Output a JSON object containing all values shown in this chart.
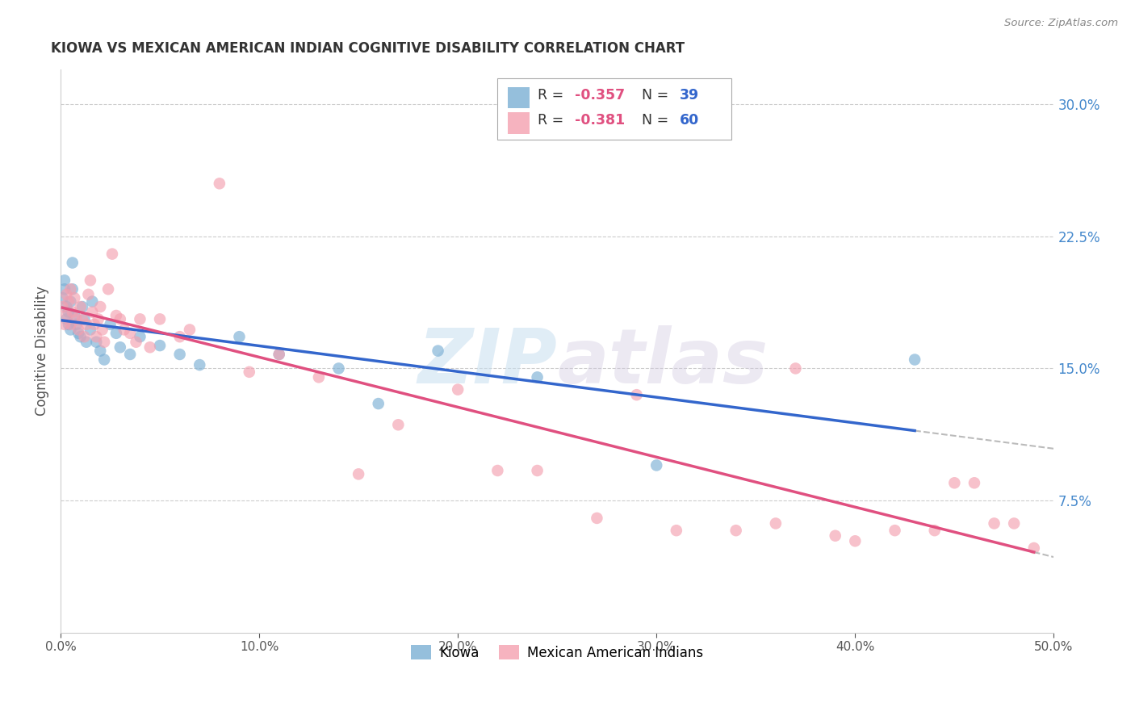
{
  "title": "KIOWA VS MEXICAN AMERICAN INDIAN COGNITIVE DISABILITY CORRELATION CHART",
  "source": "Source: ZipAtlas.com",
  "ylabel": "Cognitive Disability",
  "watermark_zip": "ZIP",
  "watermark_atlas": "atlas",
  "xlim": [
    0.0,
    0.5
  ],
  "ylim": [
    0.0,
    0.32
  ],
  "xticks": [
    0.0,
    0.1,
    0.2,
    0.3,
    0.4,
    0.5
  ],
  "yticks_right": [
    0.075,
    0.15,
    0.225,
    0.3
  ],
  "ytick_labels_right": [
    "7.5%",
    "15.0%",
    "22.5%",
    "30.0%"
  ],
  "xtick_labels": [
    "0.0%",
    "10.0%",
    "20.0%",
    "30.0%",
    "40.0%",
    "50.0%"
  ],
  "grid_color": "#cccccc",
  "background_color": "#ffffff",
  "kiowa_color": "#7bafd4",
  "mexican_color": "#f4a0b0",
  "kiowa_line_color": "#3366cc",
  "mexican_line_color": "#e05080",
  "dash_color": "#bbbbbb",
  "kiowa_label": "Kiowa",
  "mexican_label": "Mexican American Indians",
  "legend_R_color": "#e05080",
  "legend_N_color": "#3366cc",
  "kiowa_scatter_x": [
    0.001,
    0.002,
    0.002,
    0.003,
    0.003,
    0.004,
    0.004,
    0.005,
    0.005,
    0.006,
    0.006,
    0.007,
    0.008,
    0.009,
    0.01,
    0.011,
    0.012,
    0.013,
    0.015,
    0.016,
    0.018,
    0.02,
    0.022,
    0.025,
    0.028,
    0.03,
    0.035,
    0.04,
    0.05,
    0.06,
    0.07,
    0.09,
    0.11,
    0.14,
    0.16,
    0.19,
    0.24,
    0.3,
    0.43
  ],
  "kiowa_scatter_y": [
    0.19,
    0.195,
    0.2,
    0.185,
    0.178,
    0.182,
    0.175,
    0.172,
    0.188,
    0.195,
    0.21,
    0.18,
    0.175,
    0.17,
    0.168,
    0.185,
    0.178,
    0.165,
    0.172,
    0.188,
    0.165,
    0.16,
    0.155,
    0.175,
    0.17,
    0.162,
    0.158,
    0.168,
    0.163,
    0.158,
    0.152,
    0.168,
    0.158,
    0.15,
    0.13,
    0.16,
    0.145,
    0.095,
    0.155
  ],
  "mexican_scatter_x": [
    0.001,
    0.002,
    0.003,
    0.003,
    0.004,
    0.005,
    0.005,
    0.006,
    0.007,
    0.008,
    0.009,
    0.01,
    0.011,
    0.012,
    0.013,
    0.014,
    0.015,
    0.016,
    0.017,
    0.018,
    0.019,
    0.02,
    0.021,
    0.022,
    0.024,
    0.026,
    0.028,
    0.03,
    0.032,
    0.035,
    0.038,
    0.04,
    0.045,
    0.05,
    0.06,
    0.065,
    0.08,
    0.095,
    0.11,
    0.13,
    0.15,
    0.17,
    0.2,
    0.22,
    0.24,
    0.27,
    0.29,
    0.31,
    0.34,
    0.36,
    0.37,
    0.39,
    0.4,
    0.42,
    0.44,
    0.45,
    0.46,
    0.47,
    0.48,
    0.49
  ],
  "mexican_scatter_y": [
    0.185,
    0.175,
    0.192,
    0.18,
    0.188,
    0.175,
    0.195,
    0.182,
    0.19,
    0.178,
    0.172,
    0.185,
    0.178,
    0.168,
    0.175,
    0.192,
    0.2,
    0.182,
    0.175,
    0.168,
    0.178,
    0.185,
    0.172,
    0.165,
    0.195,
    0.215,
    0.18,
    0.178,
    0.172,
    0.17,
    0.165,
    0.178,
    0.162,
    0.178,
    0.168,
    0.172,
    0.255,
    0.148,
    0.158,
    0.145,
    0.09,
    0.118,
    0.138,
    0.092,
    0.092,
    0.065,
    0.135,
    0.058,
    0.058,
    0.062,
    0.15,
    0.055,
    0.052,
    0.058,
    0.058,
    0.085,
    0.085,
    0.062,
    0.062,
    0.048
  ]
}
